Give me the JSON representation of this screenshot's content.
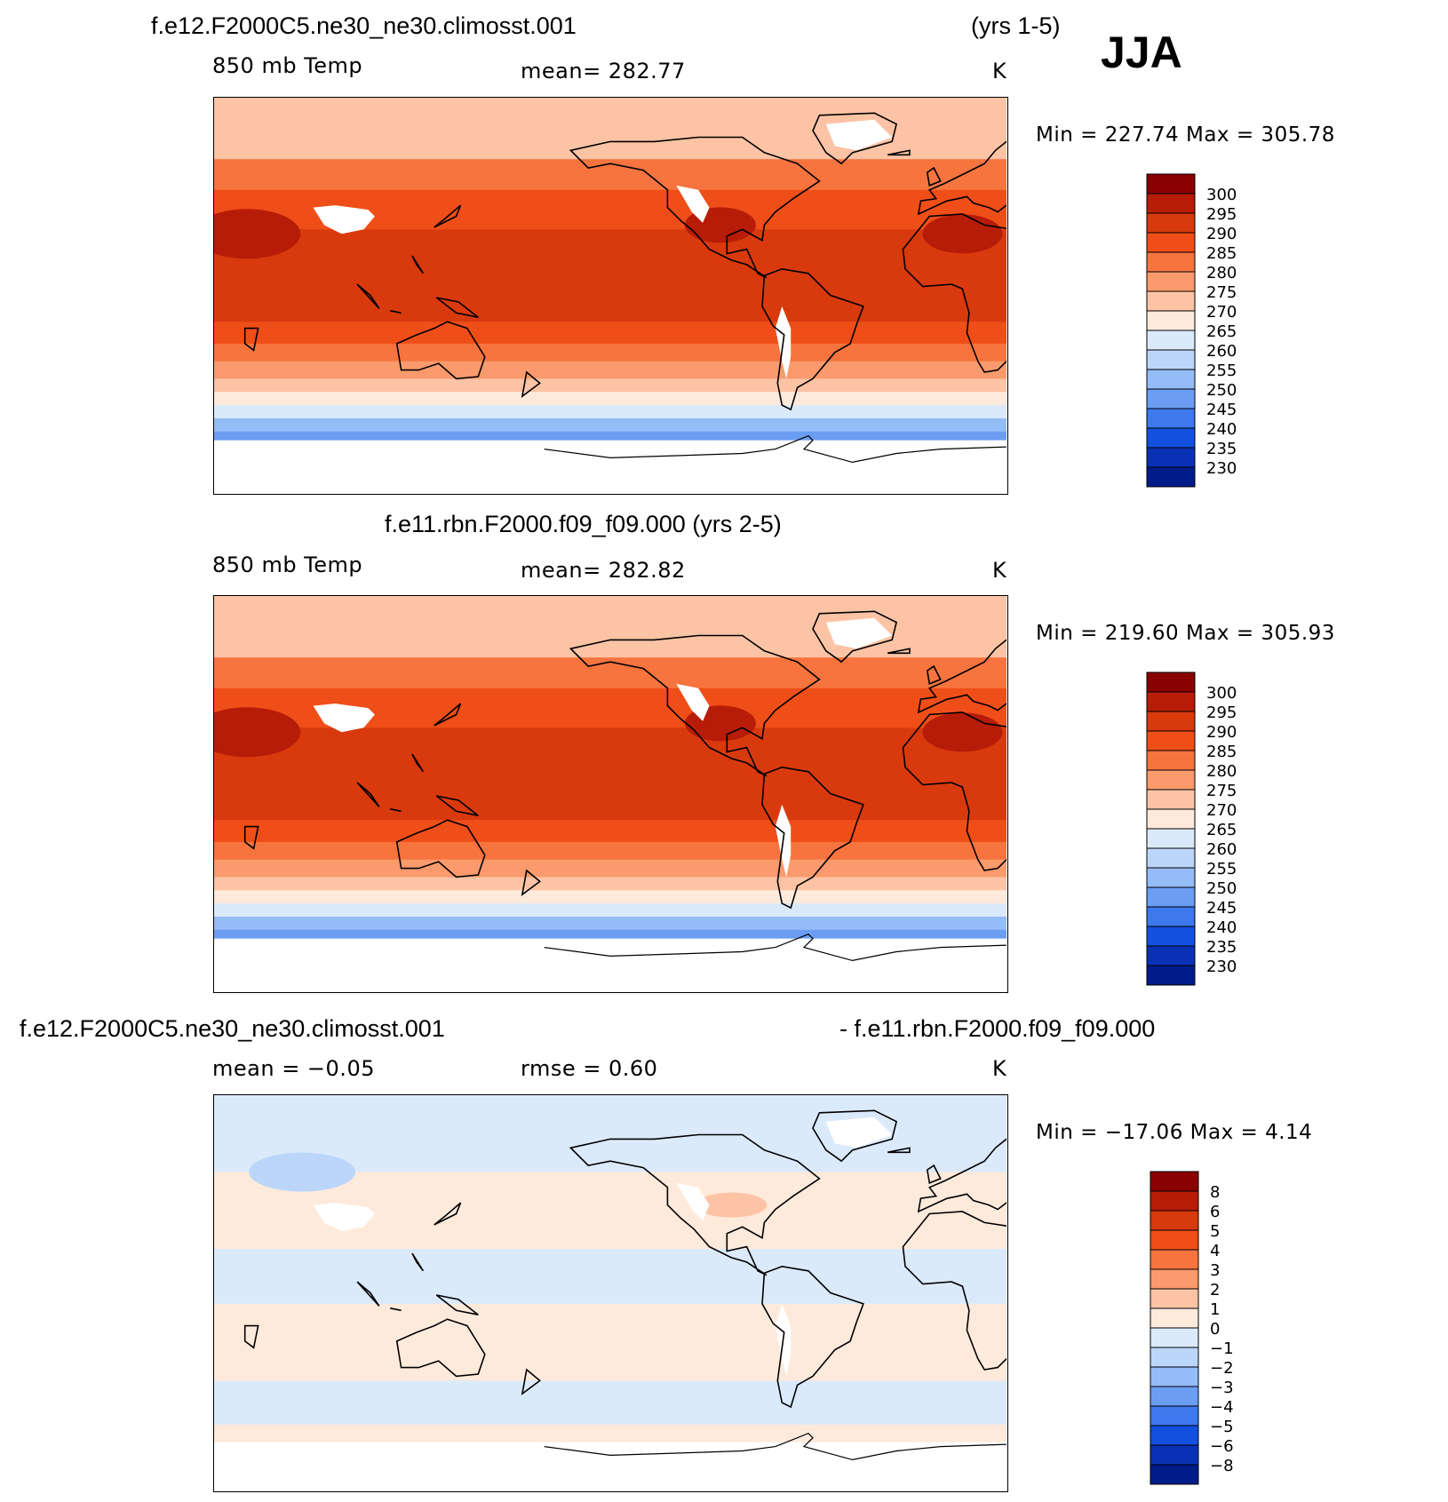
{
  "figure": {
    "season": "JJA"
  },
  "panels": [
    {
      "title_left": "f.e12.F2000C5.ne30_ne30.climosst.001",
      "title_right": "(yrs 1-5)",
      "variable": "850 mb Temp",
      "stat": "mean=  282.77",
      "units": "K",
      "min_max": "Min  =  227.74  Max  =  305.78",
      "field_type": "absolute"
    },
    {
      "title_center": "f.e11.rbn.F2000.f09_f09.000 (yrs 2-5)",
      "variable": "850 mb Temp",
      "stat": "mean=  282.82",
      "units": "K",
      "min_max": "Min  =  219.60  Max  =  305.93",
      "field_type": "absolute"
    },
    {
      "title_left": "f.e12.F2000C5.ne30_ne30.climosst.001",
      "title_right": "- f.e11.rbn.F2000.f09_f09.000",
      "stat_mean": "mean  =    −0.05",
      "stat_rmse": "rmse  =     0.60",
      "units": "K",
      "min_max": "Min  =  −17.06  Max  =     4.14",
      "field_type": "difference"
    }
  ],
  "colorbars": {
    "absolute": {
      "labels": [
        "300",
        "295",
        "290",
        "285",
        "280",
        "275",
        "270",
        "265",
        "260",
        "255",
        "250",
        "245",
        "240",
        "235",
        "230"
      ],
      "colors": [
        "#8b0000",
        "#b71c08",
        "#d83a0e",
        "#f04e18",
        "#f7743f",
        "#fb9a6c",
        "#fdc3a5",
        "#feeadb",
        "#dbeafb",
        "#bcd6fa",
        "#94bcf7",
        "#6b9ef3",
        "#3d78ee",
        "#1450e0",
        "#0a31b5",
        "#001c88"
      ]
    },
    "difference": {
      "labels": [
        "8",
        "6",
        "5",
        "4",
        "3",
        "2",
        "1",
        "0",
        "−1",
        "−2",
        "−3",
        "−4",
        "−5",
        "−6",
        "−8"
      ],
      "colors": [
        "#8b0000",
        "#b71c08",
        "#d83a0e",
        "#f04e18",
        "#f7743f",
        "#fb9a6c",
        "#fdc3a5",
        "#feeadb",
        "#dbeafb",
        "#bcd6fa",
        "#94bcf7",
        "#6b9ef3",
        "#3d78ee",
        "#1450e0",
        "#0a31b5",
        "#001c88"
      ]
    }
  }
}
